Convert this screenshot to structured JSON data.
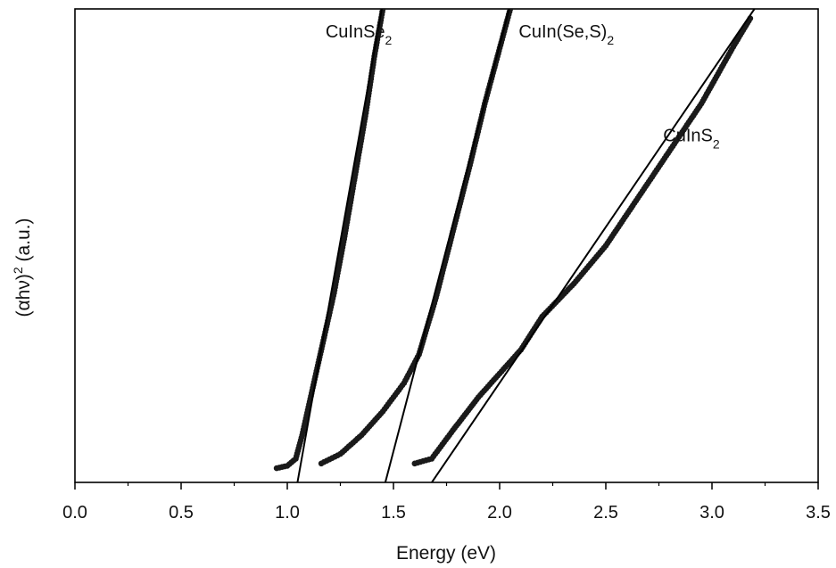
{
  "chart_data": {
    "type": "scatter",
    "title": "",
    "xlabel": "Energy (eV)",
    "ylabel_parts": {
      "base": "(αhν)",
      "sup": "2",
      "tail": " (a.u.)"
    },
    "xlim": [
      0.0,
      3.5
    ],
    "ylim": [
      0,
      1.0
    ],
    "x_ticks": [
      "0.0",
      "0.5",
      "1.0",
      "1.5",
      "2.0",
      "2.5",
      "3.0",
      "3.5"
    ],
    "x_tick_values": [
      0.0,
      0.5,
      1.0,
      1.5,
      2.0,
      2.5,
      3.0,
      3.5
    ],
    "x_minor_step": 0.25,
    "y_ticks_shown": false,
    "grid": false,
    "marker_color": "#1a1a1a",
    "fit_line_color": "#000000",
    "series": [
      {
        "name": "CuInSe",
        "name_sub": "2",
        "label_anchor": [
          1.18,
          0.94
        ],
        "points": [
          [
            0.95,
            0.03
          ],
          [
            1.0,
            0.035
          ],
          [
            1.04,
            0.05
          ],
          [
            1.07,
            0.1
          ],
          [
            1.12,
            0.2
          ],
          [
            1.17,
            0.3
          ],
          [
            1.22,
            0.4
          ],
          [
            1.27,
            0.52
          ],
          [
            1.32,
            0.65
          ],
          [
            1.37,
            0.78
          ],
          [
            1.41,
            0.9
          ],
          [
            1.45,
            1.0
          ]
        ],
        "fit_line": [
          [
            1.04,
            -0.02
          ],
          [
            1.445,
            1.0
          ]
        ]
      },
      {
        "name": "CuIn(Se,S)",
        "name_sub": "2",
        "label_anchor": [
          2.09,
          0.94
        ],
        "points": [
          [
            1.16,
            0.04
          ],
          [
            1.25,
            0.06
          ],
          [
            1.35,
            0.1
          ],
          [
            1.45,
            0.15
          ],
          [
            1.55,
            0.21
          ],
          [
            1.62,
            0.27
          ],
          [
            1.7,
            0.39
          ],
          [
            1.78,
            0.53
          ],
          [
            1.86,
            0.67
          ],
          [
            1.93,
            0.8
          ],
          [
            1.99,
            0.9
          ],
          [
            2.05,
            1.0
          ]
        ],
        "fit_line": [
          [
            1.45,
            -0.02
          ],
          [
            2.045,
            1.0
          ]
        ]
      },
      {
        "name": "CuInS",
        "name_sub": "2",
        "label_anchor": [
          2.77,
          0.72
        ],
        "points": [
          [
            1.6,
            0.04
          ],
          [
            1.68,
            0.05
          ],
          [
            1.78,
            0.11
          ],
          [
            1.9,
            0.18
          ],
          [
            2.0,
            0.23
          ],
          [
            2.1,
            0.28
          ],
          [
            2.2,
            0.35
          ],
          [
            2.35,
            0.42
          ],
          [
            2.5,
            0.5
          ],
          [
            2.65,
            0.6
          ],
          [
            2.8,
            0.7
          ],
          [
            2.95,
            0.8
          ],
          [
            3.1,
            0.92
          ],
          [
            3.18,
            0.98
          ]
        ],
        "fit_line": [
          [
            1.65,
            -0.02
          ],
          [
            3.2,
            1.0
          ]
        ]
      }
    ]
  }
}
